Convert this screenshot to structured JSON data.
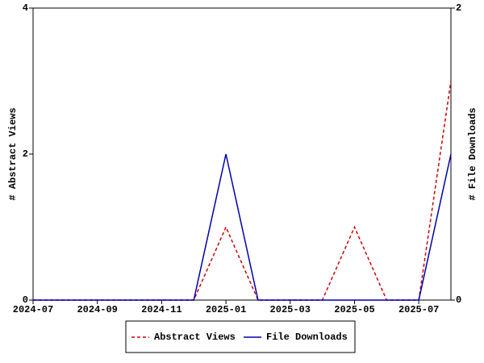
{
  "chart_data": {
    "type": "line",
    "x": [
      "2024-07",
      "2024-08",
      "2024-09",
      "2024-10",
      "2024-11",
      "2024-12",
      "2025-01",
      "2025-02",
      "2025-03",
      "2025-04",
      "2025-05",
      "2025-06",
      "2025-07",
      "2025-08"
    ],
    "xticks": [
      "2024-07",
      "2024-09",
      "2024-11",
      "2025-01",
      "2025-03",
      "2025-05",
      "2025-07"
    ],
    "ylabel": "# Abstract Views",
    "y2label": "# File Downloads",
    "ylim": [
      0,
      4
    ],
    "yticks": [
      0,
      2,
      4
    ],
    "y2lim": [
      0,
      2
    ],
    "y2ticks": [
      0,
      2
    ],
    "grid": false,
    "legend": "bottom",
    "series": [
      {
        "name": "Abstract Views",
        "color": "#cc0000",
        "dash": true,
        "axis": "y",
        "values": [
          0,
          0,
          0,
          0,
          0,
          0,
          1,
          0,
          0,
          0,
          1,
          0,
          0,
          3
        ]
      },
      {
        "name": "File Downloads",
        "color": "#0000aa",
        "dash": false,
        "axis": "y2",
        "values": [
          0,
          0,
          0,
          0,
          0,
          0,
          1,
          0,
          0,
          0,
          0,
          0,
          0,
          1
        ]
      }
    ]
  }
}
